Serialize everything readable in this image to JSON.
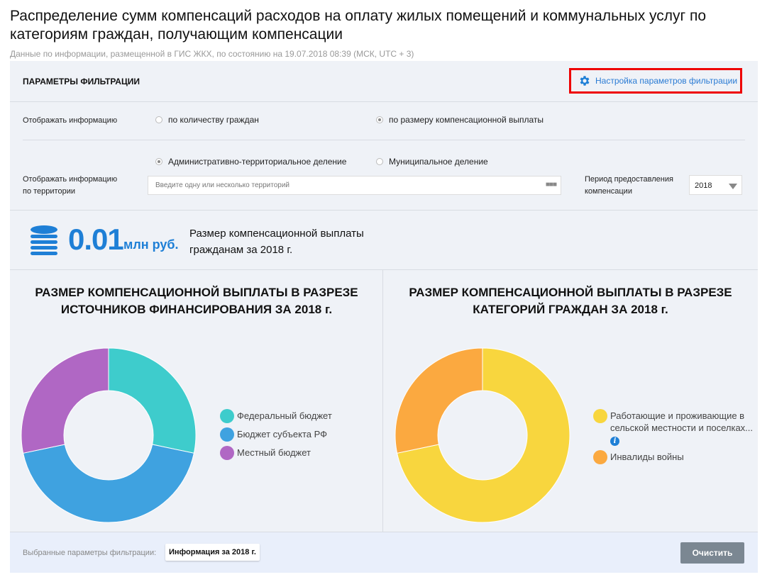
{
  "title": "Распределение сумм компенсаций расходов на оплату жилых помещений и коммунальных услуг по категориям граждан, получающим компенсации",
  "subtitle": "Данные по информации, размещенной в ГИС ЖКХ, по состоянию на 19.07.2018 08:39 (МСК, UTC + 3)",
  "filters": {
    "heading": "ПАРАМЕТРЫ ФИЛЬТРАЦИИ",
    "settings_link": "Настройка параметров фильтрации",
    "display_label": "Отображать информацию",
    "display_options": [
      {
        "label": "по количеству граждан",
        "selected": false
      },
      {
        "label": "по размеру компенсационной выплаты",
        "selected": true
      }
    ],
    "territory_label_1": "Отображать информацию",
    "territory_label_2": "по территории",
    "territory_options": [
      {
        "label": "Административно-территориальное деление",
        "selected": true
      },
      {
        "label": "Муниципальное деление",
        "selected": false
      }
    ],
    "territory_placeholder": "Введите одну или несколько территорий",
    "period_label_1": "Период предоставления",
    "period_label_2": "компенсации",
    "period_value": "2018"
  },
  "summary": {
    "value": "0.01",
    "unit": "млн руб.",
    "text_1": "Размер компенсационной выплаты",
    "text_2": "гражданам за 2018 г."
  },
  "chart_data": [
    {
      "type": "pie",
      "donut": true,
      "title_1": "РАЗМЕР КОМПЕНСАЦИОННОЙ ВЫПЛАТЫ В РАЗРЕЗЕ",
      "title_2": "ИСТОЧНИКОВ ФИНАНСИРОВАНИЯ ЗА 2018 г.",
      "legend": "right",
      "slices": [
        {
          "name": "Федеральный бюджет",
          "value": 28.3,
          "color": "#3ecccc"
        },
        {
          "name": "Бюджет субъекта РФ",
          "value": 43.4,
          "color": "#3fa2e0"
        },
        {
          "name": "Местный бюджет",
          "value": 28.3,
          "color": "#b067c4"
        }
      ]
    },
    {
      "type": "pie",
      "donut": true,
      "title_1": "РАЗМЕР КОМПЕНСАЦИОННОЙ ВЫПЛАТЫ В РАЗРЕЗЕ",
      "title_2": "КАТЕГОРИЙ ГРАЖДАН ЗА 2018 г.",
      "legend": "right",
      "slices": [
        {
          "name": "Работающие и проживающие в сельской местности и поселках...",
          "value": 71.7,
          "color": "#f8d63e",
          "info": true
        },
        {
          "name": "Инвалиды войны",
          "value": 28.3,
          "color": "#fba940"
        }
      ]
    }
  ],
  "footer": {
    "label": "Выбранные параметры фильтрации:",
    "chip": "Информация за 2018 г.",
    "clear": "Очистить"
  },
  "info_icon": "i"
}
